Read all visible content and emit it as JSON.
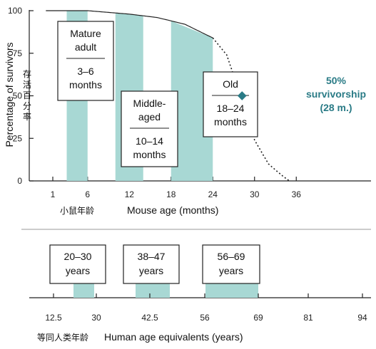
{
  "chart_data": [
    {
      "type": "area",
      "ylabel": "Percentage of survivors",
      "ylabel_cn": "存活百分率",
      "xlabel": "Mouse age (months)",
      "xlabel_cn": "小鼠年龄",
      "x_ticks": [
        "1",
        "6",
        "12",
        "18",
        "24",
        "30",
        "36"
      ],
      "y_ticks": [
        "0",
        "25",
        "50",
        "75",
        "100"
      ],
      "xlim": [
        0,
        36
      ],
      "ylim": [
        0,
        100
      ],
      "survival_curve": [
        {
          "x": 0,
          "y": 100
        },
        {
          "x": 6,
          "y": 100
        },
        {
          "x": 12,
          "y": 98
        },
        {
          "x": 16,
          "y": 96
        },
        {
          "x": 20,
          "y": 92
        },
        {
          "x": 24,
          "y": 84
        },
        {
          "x": 26,
          "y": 74
        },
        {
          "x": 28,
          "y": 50
        },
        {
          "x": 30,
          "y": 24
        },
        {
          "x": 32,
          "y": 10
        },
        {
          "x": 34,
          "y": 3
        },
        {
          "x": 35,
          "y": 0
        }
      ],
      "bands": [
        {
          "start": 3,
          "end": 6
        },
        {
          "start": 10,
          "end": 14
        },
        {
          "start": 18,
          "end": 24
        }
      ],
      "groups": [
        {
          "title_lines": [
            "Mature",
            "adult"
          ],
          "range_lines": [
            "3–6",
            "months"
          ]
        },
        {
          "title_lines": [
            "Middle-",
            "aged"
          ],
          "range_lines": [
            "10–14",
            "months"
          ]
        },
        {
          "title_lines": [
            "Old"
          ],
          "range_lines": [
            "18–24",
            "months"
          ]
        }
      ],
      "annotation": {
        "x": 28,
        "y": 50,
        "lines": [
          "50%",
          "survivorship",
          "(28 m.)"
        ],
        "color": "#2a7b86"
      },
      "band_color": "#a8d8d4"
    },
    {
      "type": "bar",
      "xlabel": "Human age equivalents (years)",
      "xlabel_cn": "等同人类年龄",
      "x_ticks": [
        "12.5",
        "30",
        "42.5",
        "56",
        "69",
        "81",
        "94"
      ],
      "groups": [
        {
          "label_lines": [
            "20–30",
            "years"
          ]
        },
        {
          "label_lines": [
            "38–47",
            "years"
          ]
        },
        {
          "label_lines": [
            "56–69",
            "years"
          ]
        }
      ],
      "band_color": "#a8d8d4"
    }
  ]
}
